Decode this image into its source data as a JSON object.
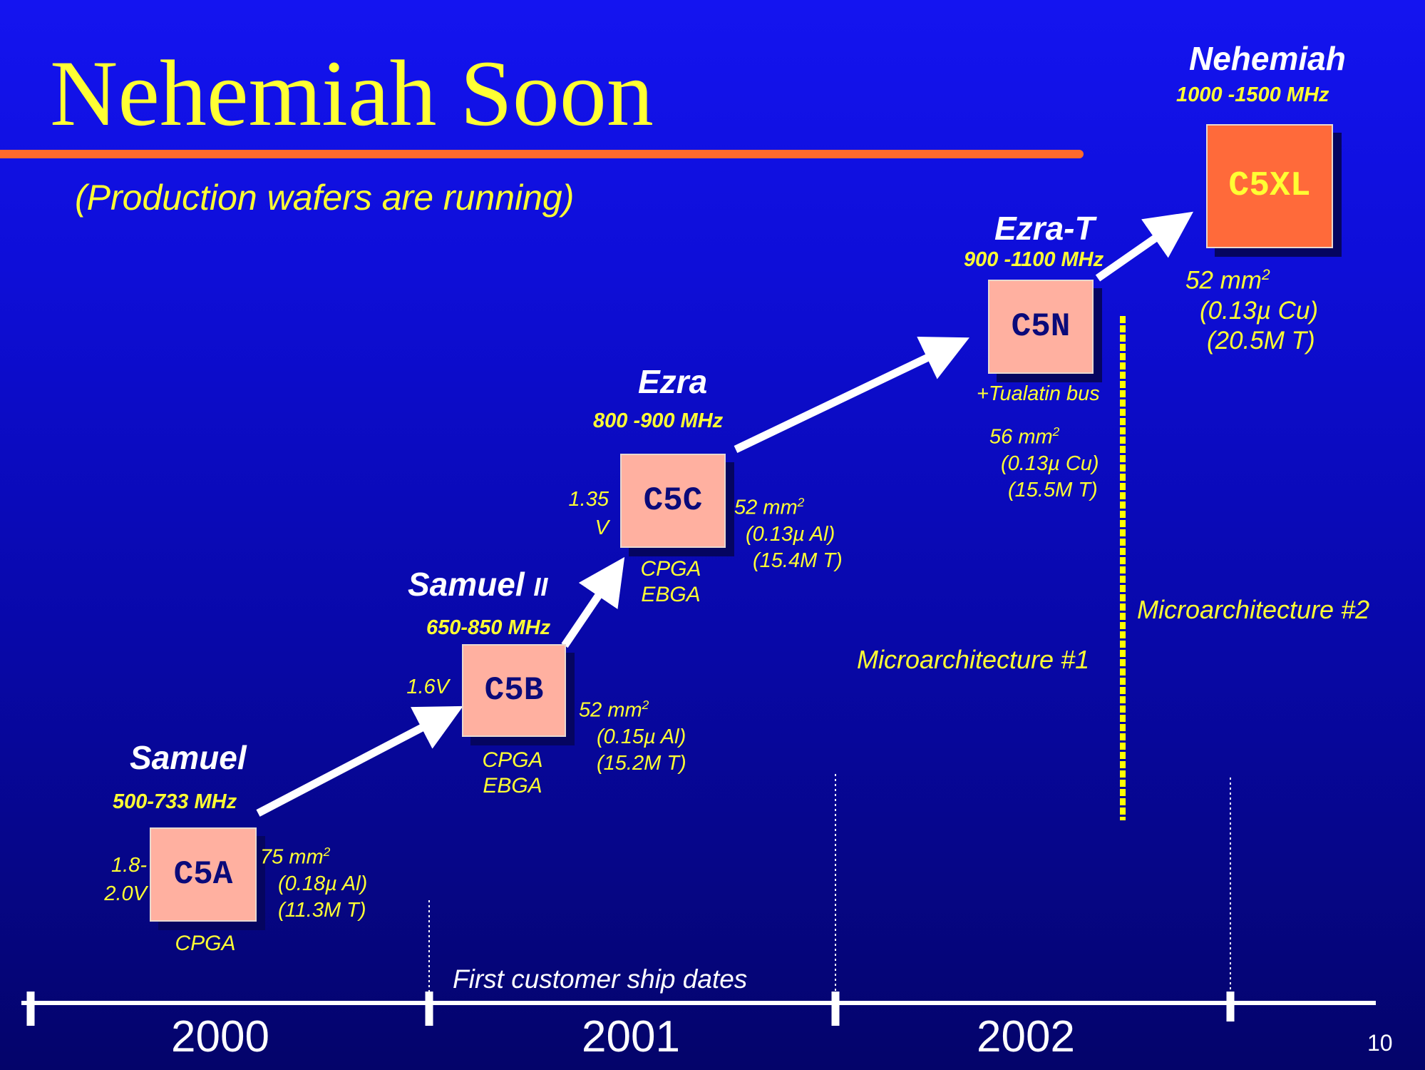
{
  "slide": {
    "title": "Nehemiah Soon",
    "subtitle": "(Production wafers are running)",
    "page_number": "10",
    "accent_color": "#ff6a2c",
    "title_color": "#ffff33"
  },
  "processors": {
    "c5a": {
      "name": "Samuel",
      "freq": "500-733 MHz",
      "chip": "C5A",
      "voltage": [
        "1.8-",
        "2.0V"
      ],
      "area": "75 mm",
      "area_sup": "2",
      "process": "(0.18µ Al)",
      "transistors": "(11.3M T)",
      "package": [
        "CPGA"
      ]
    },
    "c5b": {
      "name": "Samuel ",
      "name_suffix": "II",
      "freq": "650-850 MHz",
      "chip": "C5B",
      "voltage": [
        "1.6V"
      ],
      "area": "52 mm",
      "area_sup": "2",
      "process": "(0.15µ Al)",
      "transistors": "(15.2M T)",
      "package": [
        "CPGA",
        "EBGA"
      ]
    },
    "c5c": {
      "name": "Ezra",
      "freq": "800 -900 MHz",
      "chip": "C5C",
      "voltage": [
        "1.35",
        "V"
      ],
      "area": "52 mm",
      "area_sup": "2",
      "process": "(0.13µ Al)",
      "transistors": "(15.4M T)",
      "package": [
        "CPGA",
        "EBGA"
      ]
    },
    "c5n": {
      "name": "Ezra-T",
      "freq": "900 -1100 MHz",
      "chip": "C5N",
      "note": "+Tualatin bus",
      "area": "56 mm",
      "area_sup": "2",
      "process": "(0.13µ Cu)",
      "transistors": "(15.5M T)"
    },
    "c5xl": {
      "name": "Nehemiah",
      "freq": "1000 -1500 MHz",
      "chip": "C5XL",
      "area": "52 mm",
      "area_sup": "2",
      "process": "(0.13µ Cu)",
      "transistors": "(20.5M T)"
    }
  },
  "microarchitecture": {
    "first": "Microarchitecture #1",
    "second": "Microarchitecture #2"
  },
  "timeline": {
    "label": "First customer ship dates",
    "years": [
      "2000",
      "2001",
      "2002"
    ]
  }
}
